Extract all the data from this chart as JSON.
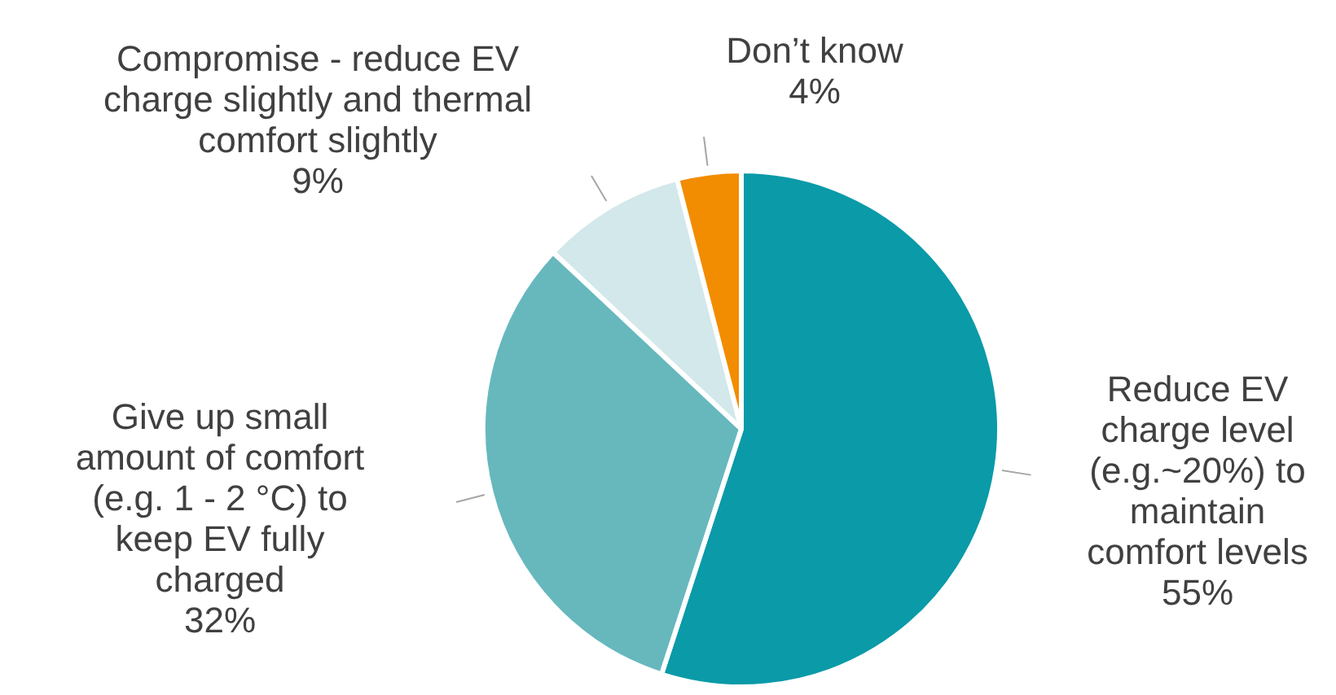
{
  "chart_data": {
    "type": "pie",
    "categories": [
      "Reduce EV charge level (e.g.~20%) to maintain comfort levels",
      "Give up small amount of comfort (e.g. 1 - 2 °C) to keep EV fully charged",
      "Compromise - reduce EV charge slightly and thermal comfort slightly",
      "Don’t know"
    ],
    "values": [
      55,
      32,
      9,
      4
    ],
    "value_labels": [
      "55%",
      "32%",
      "9%",
      "4%"
    ],
    "colors": [
      "#0a9aa8",
      "#66b8bd",
      "#d2e8ea",
      "#f28c00"
    ],
    "legend": false
  }
}
